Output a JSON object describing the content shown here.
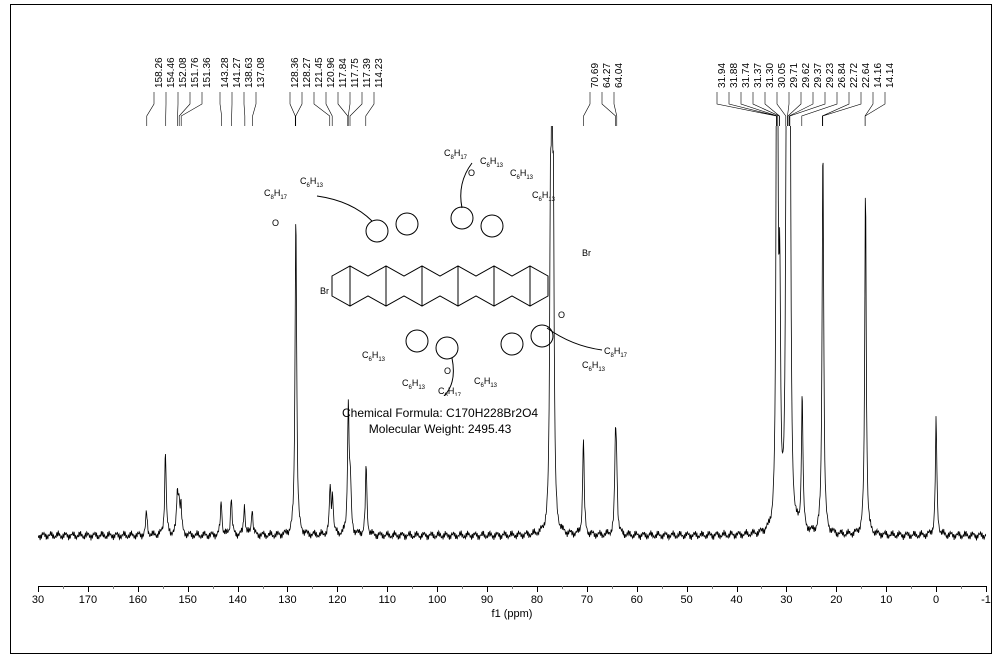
{
  "spectrum": {
    "type": "nmr-13c",
    "x_axis": {
      "label": "f1 (ppm)",
      "min": -10,
      "max": 180,
      "major_step": 10
    },
    "baseline_y": 0.9,
    "noise_amp": 0.015,
    "peak_labels": [
      "158.26",
      "154.46",
      "152.08",
      "151.76",
      "151.36",
      "143.28",
      "141.27",
      "138.63",
      "137.08",
      "128.36",
      "128.27",
      "121.45",
      "120.96",
      "117.84",
      "117.75",
      "117.39",
      "114.23",
      "70.69",
      "64.27",
      "64.04",
      "31.94",
      "31.88",
      "31.74",
      "31.37",
      "31.30",
      "30.05",
      "29.71",
      "29.62",
      "29.37",
      "29.23",
      "26.84",
      "22.72",
      "22.64",
      "14.16",
      "14.14"
    ],
    "label_groups": [
      {
        "labels": [
          158.26,
          154.46,
          152.08,
          151.76,
          151.36
        ],
        "stem_ppm": 152
      },
      {
        "labels": [
          143.28,
          141.27,
          138.63,
          137.08
        ],
        "stem_ppm": 140
      },
      {
        "labels": [
          128.36,
          128.27,
          121.45,
          120.96,
          117.84,
          117.75,
          117.39,
          114.23
        ],
        "stem_ppm": 121
      },
      {
        "labels": [
          70.69,
          64.27,
          64.04
        ],
        "stem_ppm": 67
      },
      {
        "labels": [
          31.94,
          31.88,
          31.74,
          31.37,
          31.3,
          30.05,
          29.71,
          29.62,
          29.37,
          29.23,
          26.84,
          22.72,
          22.64,
          14.16,
          14.14
        ],
        "stem_ppm": 27
      }
    ],
    "peaks": [
      {
        "ppm": 158.26,
        "h": 0.06
      },
      {
        "ppm": 154.46,
        "h": 0.22
      },
      {
        "ppm": 152.08,
        "h": 0.1
      },
      {
        "ppm": 151.76,
        "h": 0.08
      },
      {
        "ppm": 151.36,
        "h": 0.07
      },
      {
        "ppm": 143.28,
        "h": 0.09
      },
      {
        "ppm": 141.27,
        "h": 0.1
      },
      {
        "ppm": 138.63,
        "h": 0.08
      },
      {
        "ppm": 137.08,
        "h": 0.07
      },
      {
        "ppm": 128.36,
        "h": 0.48
      },
      {
        "ppm": 128.27,
        "h": 0.4
      },
      {
        "ppm": 121.45,
        "h": 0.12
      },
      {
        "ppm": 120.96,
        "h": 0.1
      },
      {
        "ppm": 117.84,
        "h": 0.2
      },
      {
        "ppm": 117.75,
        "h": 0.15
      },
      {
        "ppm": 117.39,
        "h": 0.12
      },
      {
        "ppm": 114.23,
        "h": 0.18
      },
      {
        "ppm": 77.3,
        "h": 0.7
      },
      {
        "ppm": 77.0,
        "h": 0.85
      },
      {
        "ppm": 76.7,
        "h": 0.7
      },
      {
        "ppm": 70.69,
        "h": 0.25
      },
      {
        "ppm": 64.27,
        "h": 0.22
      },
      {
        "ppm": 64.04,
        "h": 0.15
      },
      {
        "ppm": 31.94,
        "h": 0.82
      },
      {
        "ppm": 31.88,
        "h": 0.55
      },
      {
        "ppm": 31.74,
        "h": 0.4
      },
      {
        "ppm": 31.37,
        "h": 0.3
      },
      {
        "ppm": 31.3,
        "h": 0.28
      },
      {
        "ppm": 30.05,
        "h": 0.72
      },
      {
        "ppm": 29.71,
        "h": 0.88
      },
      {
        "ppm": 29.62,
        "h": 0.8
      },
      {
        "ppm": 29.37,
        "h": 0.7
      },
      {
        "ppm": 29.23,
        "h": 0.55
      },
      {
        "ppm": 26.84,
        "h": 0.35
      },
      {
        "ppm": 22.72,
        "h": 0.6
      },
      {
        "ppm": 22.64,
        "h": 0.45
      },
      {
        "ppm": 14.16,
        "h": 0.5
      },
      {
        "ppm": 14.14,
        "h": 0.4
      },
      {
        "ppm": 0.0,
        "h": 0.3
      }
    ],
    "colors": {
      "line": "#000000",
      "bg": "#ffffff"
    }
  },
  "compound": {
    "formula_label": "Chemical Formula: C170H228Br2O4",
    "mw_label": "Molecular Weight: 2495.43",
    "substituents": [
      "C8H17",
      "C6H13",
      "Br",
      "O"
    ]
  }
}
